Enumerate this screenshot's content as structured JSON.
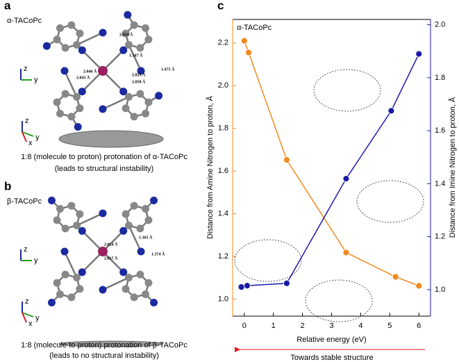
{
  "panels": [
    {
      "label": "a",
      "title": "α-TACoPc",
      "bond_labels": [
        "2.034 Å",
        "1.347 Å",
        "2.043 Å",
        "2.025 Å",
        "1.475 Å",
        "2.046 Å",
        "2.058 Å"
      ],
      "triad_1": [
        "z",
        "y"
      ],
      "triad_2": [
        "z",
        "y",
        "x"
      ],
      "caption": "1:8 (molecule to proton) protonation of α-TACoPc",
      "note": "(leads to structural instability)"
    },
    {
      "label": "b",
      "title": "β-TACoPc",
      "bond_labels": [
        "2.014 Å",
        "1.365 Å",
        "1.374 Å",
        "2.017 Å"
      ],
      "triad_1": [
        "z",
        "y"
      ],
      "triad_2": [
        "z",
        "y",
        "x"
      ],
      "caption": "1:8 (molecule to proton) protonation of β-TACoPc",
      "note": "(leads to no structural instability)"
    }
  ],
  "chart_data": {
    "type": "line",
    "panel_label": "c",
    "annotation": "α-TACoPc",
    "x_label": "Relative energy (eV)",
    "y_label": "Distance from Amine Nitrogen to proton, Å",
    "y2_label": "Distance from Imine Nitrogen to proton, Å",
    "arrow_label": "Towards stable structure",
    "xlim": [
      -0.4,
      6.4
    ],
    "xticks": [
      0,
      1,
      2,
      3,
      4,
      5,
      6
    ],
    "ylim": [
      0.92,
      2.31
    ],
    "yticks": [
      {
        "value": 1,
        "label": "1.0"
      },
      {
        "value": 1.2,
        "label": "1.2"
      },
      {
        "value": 1.4,
        "label": "1.4"
      },
      {
        "value": 1.6,
        "label": "1.6"
      },
      {
        "value": 1.8,
        "label": "1.8"
      },
      {
        "value": 2,
        "label": "2.0"
      },
      {
        "value": 2.2,
        "label": "2.2"
      }
    ],
    "y2lim": [
      0.9,
      2.02
    ],
    "y2ticks": [
      {
        "value": 1,
        "label": "1.0"
      },
      {
        "value": 1.2,
        "label": "1.2"
      },
      {
        "value": 1.4,
        "label": "1.4"
      },
      {
        "value": 1.6,
        "label": "1.6"
      },
      {
        "value": 1.8,
        "label": "1.8"
      },
      {
        "value": 2,
        "label": "2.0"
      }
    ],
    "series": [
      {
        "color": "#f28a1e",
        "axis": "y",
        "x": [
          0,
          0.15,
          1.46,
          3.5,
          5.2,
          6
        ],
        "values": [
          2.21,
          2.155,
          1.652,
          1.218,
          1.104,
          1.062
        ]
      },
      {
        "color": "#1a1aa8",
        "axis": "y2",
        "x": [
          -0.1,
          0.1,
          1.46,
          3.5,
          5.05,
          6
        ],
        "values": [
          1.01,
          1.015,
          1.024,
          1.419,
          1.675,
          1.89
        ]
      }
    ]
  }
}
